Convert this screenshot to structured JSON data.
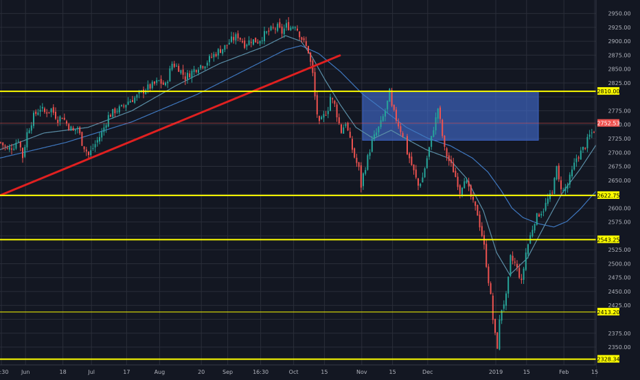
{
  "chart_data": {
    "type": "candlestick",
    "title": "",
    "xlabel": "",
    "ylabel": "",
    "ylim": [
      2318,
      2968
    ],
    "grid": true,
    "y_ticks": [
      2350,
      2375,
      2400,
      2425,
      2450,
      2475,
      2500,
      2525,
      2550,
      2575,
      2600,
      2625,
      2650,
      2675,
      2700,
      2725,
      2750,
      2775,
      2800,
      2825,
      2850,
      2875,
      2900,
      2925,
      2950
    ],
    "x_ticks": [
      {
        "label": ":30",
        "day": 0
      },
      {
        "label": "Jun",
        "day": 11
      },
      {
        "label": "18",
        "day": 28
      },
      {
        "label": "Jul",
        "day": 41
      },
      {
        "label": "17",
        "day": 57
      },
      {
        "label": "Aug",
        "day": 72
      },
      {
        "label": "20",
        "day": 91
      },
      {
        "label": "Sep",
        "day": 103
      },
      {
        "label": "16:30",
        "day": 118
      },
      {
        "label": "Oct",
        "day": 133
      },
      {
        "label": "15",
        "day": 147
      },
      {
        "label": "Nov",
        "day": 164
      },
      {
        "label": "15",
        "day": 178
      },
      {
        "label": "Dec",
        "day": 194
      },
      {
        "label": "2019",
        "day": 225
      },
      {
        "label": "15",
        "day": 239
      },
      {
        "label": "Feb",
        "day": 256
      },
      {
        "label": "15",
        "day": 270
      }
    ],
    "price_anchors": [
      [
        0,
        2718
      ],
      [
        3,
        2705
      ],
      [
        6,
        2712
      ],
      [
        8,
        2725
      ],
      [
        10,
        2692
      ],
      [
        12,
        2735
      ],
      [
        15,
        2765
      ],
      [
        18,
        2780
      ],
      [
        20,
        2772
      ],
      [
        23,
        2778
      ],
      [
        26,
        2760
      ],
      [
        28,
        2765
      ],
      [
        30,
        2752
      ],
      [
        33,
        2738
      ],
      [
        35,
        2745
      ],
      [
        37,
        2718
      ],
      [
        40,
        2695
      ],
      [
        43,
        2715
      ],
      [
        46,
        2735
      ],
      [
        49,
        2765
      ],
      [
        52,
        2775
      ],
      [
        55,
        2780
      ],
      [
        58,
        2792
      ],
      [
        62,
        2800
      ],
      [
        66,
        2815
      ],
      [
        68,
        2818
      ],
      [
        72,
        2828
      ],
      [
        75,
        2820
      ],
      [
        78,
        2860
      ],
      [
        81,
        2852
      ],
      [
        84,
        2835
      ],
      [
        87,
        2845
      ],
      [
        90,
        2855
      ],
      [
        93,
        2860
      ],
      [
        96,
        2872
      ],
      [
        99,
        2882
      ],
      [
        102,
        2890
      ],
      [
        105,
        2902
      ],
      [
        108,
        2910
      ],
      [
        111,
        2895
      ],
      [
        114,
        2902
      ],
      [
        117,
        2900
      ],
      [
        120,
        2912
      ],
      [
        123,
        2920
      ],
      [
        126,
        2925
      ],
      [
        128,
        2916
      ],
      [
        130,
        2928
      ],
      [
        132,
        2925
      ],
      [
        134,
        2930
      ],
      [
        137,
        2905
      ],
      [
        140,
        2882
      ],
      [
        142,
        2840
      ],
      [
        143,
        2800
      ],
      [
        144,
        2770
      ],
      [
        145,
        2750
      ],
      [
        147,
        2765
      ],
      [
        149,
        2780
      ],
      [
        150,
        2800
      ],
      [
        152,
        2785
      ],
      [
        154,
        2752
      ],
      [
        155,
        2738
      ],
      [
        157,
        2755
      ],
      [
        159,
        2720
      ],
      [
        161,
        2692
      ],
      [
        163,
        2670
      ],
      [
        164,
        2640
      ],
      [
        165,
        2660
      ],
      [
        167,
        2690
      ],
      [
        169,
        2720
      ],
      [
        171,
        2735
      ],
      [
        173,
        2752
      ],
      [
        175,
        2775
      ],
      [
        176,
        2790
      ],
      [
        177,
        2808
      ],
      [
        178,
        2780
      ],
      [
        180,
        2760
      ],
      [
        182,
        2740
      ],
      [
        184,
        2725
      ],
      [
        185,
        2700
      ],
      [
        186,
        2690
      ],
      [
        188,
        2665
      ],
      [
        190,
        2640
      ],
      [
        192,
        2655
      ],
      [
        194,
        2690
      ],
      [
        196,
        2725
      ],
      [
        197,
        2745
      ],
      [
        198,
        2760
      ],
      [
        199,
        2780
      ],
      [
        200,
        2755
      ],
      [
        201,
        2730
      ],
      [
        202,
        2705
      ],
      [
        204,
        2685
      ],
      [
        206,
        2668
      ],
      [
        208,
        2645
      ],
      [
        209,
        2630
      ],
      [
        211,
        2655
      ],
      [
        213,
        2632
      ],
      [
        215,
        2608
      ],
      [
        217,
        2590
      ],
      [
        218,
        2570
      ],
      [
        219,
        2552
      ],
      [
        220,
        2530
      ],
      [
        221,
        2500
      ],
      [
        222,
        2470
      ],
      [
        223,
        2440
      ],
      [
        224,
        2400
      ],
      [
        225,
        2370
      ],
      [
        226,
        2352
      ],
      [
        227,
        2395
      ],
      [
        228,
        2420
      ],
      [
        230,
        2440
      ],
      [
        231,
        2470
      ],
      [
        232,
        2510
      ],
      [
        234,
        2500
      ],
      [
        236,
        2480
      ],
      [
        237,
        2465
      ],
      [
        239,
        2520
      ],
      [
        241,
        2550
      ],
      [
        243,
        2578
      ],
      [
        245,
        2590
      ],
      [
        247,
        2598
      ],
      [
        249,
        2615
      ],
      [
        251,
        2625
      ],
      [
        252,
        2660
      ],
      [
        253,
        2670
      ],
      [
        254,
        2648
      ],
      [
        256,
        2630
      ],
      [
        258,
        2642
      ],
      [
        260,
        2665
      ],
      [
        262,
        2690
      ],
      [
        264,
        2700
      ],
      [
        266,
        2712
      ],
      [
        268,
        2730
      ],
      [
        270,
        2740
      ],
      [
        272,
        2752
      ]
    ],
    "ma_fast_anchors": [
      [
        0,
        2705
      ],
      [
        20,
        2735
      ],
      [
        40,
        2745
      ],
      [
        60,
        2775
      ],
      [
        80,
        2820
      ],
      [
        100,
        2860
      ],
      [
        120,
        2890
      ],
      [
        130,
        2910
      ],
      [
        137,
        2900
      ],
      [
        142,
        2872
      ],
      [
        148,
        2830
      ],
      [
        155,
        2785
      ],
      [
        162,
        2745
      ],
      [
        170,
        2725
      ],
      [
        178,
        2740
      ],
      [
        186,
        2722
      ],
      [
        194,
        2705
      ],
      [
        204,
        2690
      ],
      [
        212,
        2655
      ],
      [
        220,
        2595
      ],
      [
        226,
        2520
      ],
      [
        232,
        2480
      ],
      [
        240,
        2510
      ],
      [
        248,
        2570
      ],
      [
        256,
        2628
      ],
      [
        264,
        2670
      ],
      [
        272,
        2718
      ]
    ],
    "ma_slow_anchors": [
      [
        0,
        2690
      ],
      [
        30,
        2718
      ],
      [
        60,
        2755
      ],
      [
        90,
        2805
      ],
      [
        110,
        2845
      ],
      [
        130,
        2885
      ],
      [
        137,
        2892
      ],
      [
        145,
        2878
      ],
      [
        155,
        2845
      ],
      [
        165,
        2805
      ],
      [
        175,
        2775
      ],
      [
        185,
        2745
      ],
      [
        195,
        2725
      ],
      [
        205,
        2712
      ],
      [
        215,
        2690
      ],
      [
        222,
        2665
      ],
      [
        228,
        2632
      ],
      [
        233,
        2600
      ],
      [
        238,
        2583
      ],
      [
        245,
        2572
      ],
      [
        252,
        2566
      ],
      [
        258,
        2576
      ],
      [
        264,
        2598
      ],
      [
        270,
        2625
      ],
      [
        276,
        2650
      ]
    ],
    "horizontal_levels": [
      {
        "value": 2810.0,
        "label": "2810.00",
        "color": "#ffff00",
        "width": 2
      },
      {
        "value": 2622.75,
        "label": "2622.75",
        "color": "#ffff00",
        "width": 2
      },
      {
        "value": 2543.25,
        "label": "2543.25",
        "color": "#ffff00",
        "width": 2
      },
      {
        "value": 2413.2,
        "label": "2413.20",
        "color": "#ffff00",
        "width": 1
      },
      {
        "value": 2328.34,
        "label": "2328.34",
        "color": "#ffff00",
        "width": 2
      }
    ],
    "last_price": {
      "value": 2752.53,
      "label": "2752.53",
      "color": "#ef5350"
    },
    "trendline": {
      "from": {
        "day": 0,
        "value": 2622.75
      },
      "to": {
        "day": 155,
        "value": 2875
      },
      "color": "#e02020"
    },
    "zone": {
      "from_day": 165,
      "to_day": 245,
      "top": 2810,
      "bottom": 2722,
      "fill": "rgba(66,110,210,0.62)",
      "stroke": "#3c64c8"
    },
    "colors": {
      "up": "#26a69a",
      "down": "#ef5350",
      "ma_fast": "#5b8fa8",
      "ma_slow": "#3f78c0",
      "background": "#131722",
      "grid": "#2a2e39",
      "axis_text": "#b2b5be"
    }
  }
}
